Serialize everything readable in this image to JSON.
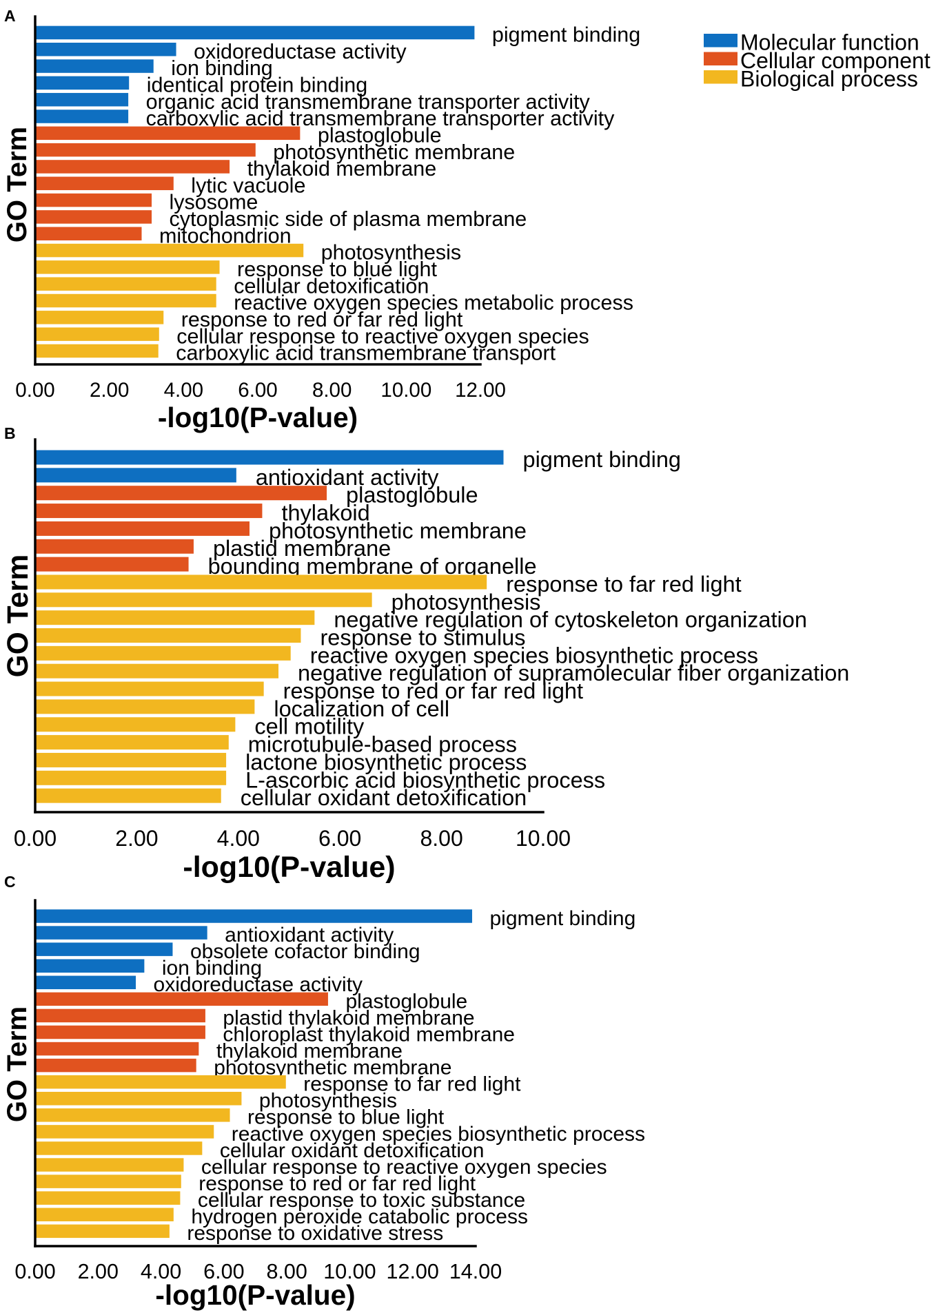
{
  "legend": {
    "placement": "top-right",
    "items": [
      {
        "label": "Molecular function",
        "color": "#0E6FC1"
      },
      {
        "label": "Cellular component",
        "color": "#E1531F"
      },
      {
        "label": "Biological process",
        "color": "#F2B720"
      }
    ]
  },
  "chart_data": [
    {
      "panel_label": "A",
      "type": "bar",
      "xlabel": "-log10(P-value)",
      "ylabel": "GO Term",
      "xlim": [
        0,
        12
      ],
      "xticks": [
        "0.00",
        "2.00",
        "4.00",
        "6.00",
        "8.00",
        "10.00",
        "12.00"
      ],
      "grid": false,
      "categories": [
        "pigment binding",
        "oxidoreductase activity",
        "ion binding",
        "identical protein binding",
        "organic acid transmembrane transporter activity",
        "carboxylic acid transmembrane transporter activity",
        "plastoglobule",
        "photosynthetic membrane",
        "thylakoid membrane",
        "lytic vacuole",
        "lysosome",
        "cytoplasmic side of plasma membrane",
        "mitochondrion",
        "photosynthesis",
        "response to blue light",
        "cellular detoxification",
        "reactive oxygen species metabolic process",
        "response to red or far red light",
        "cellular response to reactive oxygen species",
        "carboxylic acid transmembrane transport"
      ],
      "values": [
        11.84,
        3.8,
        3.19,
        2.53,
        2.51,
        2.51,
        7.14,
        5.94,
        5.24,
        3.73,
        3.14,
        3.14,
        2.87,
        7.23,
        4.97,
        4.88,
        4.88,
        3.46,
        3.34,
        3.32
      ],
      "groups": [
        0,
        0,
        0,
        0,
        0,
        0,
        1,
        1,
        1,
        1,
        1,
        1,
        1,
        2,
        2,
        2,
        2,
        2,
        2,
        2
      ]
    },
    {
      "panel_label": "B",
      "type": "bar",
      "xlabel": "-log10(P-value)",
      "ylabel": "GO Term",
      "xlim": [
        0,
        10
      ],
      "xticks": [
        "0.00",
        "2.00",
        "4.00",
        "6.00",
        "8.00",
        "10.00"
      ],
      "grid": false,
      "categories": [
        "pigment binding",
        "antioxidant activity",
        "plastoglobule",
        "thylakoid",
        "photosynthetic membrane",
        "plastid membrane",
        "bounding membrane of organelle",
        "response to far red light",
        "photosynthesis",
        "negative regulation of cytoskeleton organization",
        "response to stimulus",
        "reactive oxygen species biosynthetic process",
        "negative regulation of supramolecular fiber organization",
        "response to red or far red light",
        "localization of cell",
        "cell motility",
        "microtubule-based process",
        "lactone biosynthetic process",
        "L-ascorbic acid biosynthetic process",
        "cellular oxidant detoxification"
      ],
      "values": [
        9.22,
        3.96,
        5.74,
        4.47,
        4.22,
        3.12,
        3.02,
        8.89,
        6.63,
        5.5,
        5.23,
        5.03,
        4.79,
        4.5,
        4.32,
        3.94,
        3.81,
        3.76,
        3.76,
        3.66
      ],
      "groups": [
        0,
        0,
        1,
        1,
        1,
        1,
        1,
        2,
        2,
        2,
        2,
        2,
        2,
        2,
        2,
        2,
        2,
        2,
        2,
        2
      ]
    },
    {
      "panel_label": "C",
      "type": "bar",
      "xlabel": "-log10(P-value)",
      "ylabel": "GO Term",
      "xlim": [
        0,
        14
      ],
      "xticks": [
        "0.00",
        "2.00",
        "4.00",
        "6.00",
        "8.00",
        "10.00",
        "12.00",
        "14.00"
      ],
      "grid": false,
      "categories": [
        "pigment binding",
        "antioxidant activity",
        "obsolete cofactor binding",
        "ion binding",
        "oxidoreductase activity",
        "plastoglobule",
        "plastid thylakoid membrane",
        "chloroplast thylakoid membrane",
        "thylakoid membrane",
        "photosynthetic membrane",
        "response to far red light",
        "photosynthesis",
        "response to blue light",
        "reactive oxygen species biosynthetic process",
        "cellular oxidant detoxification",
        "cellular response to reactive oxygen species",
        "response to red or far red light",
        "cellular response to toxic substance",
        "hydrogen peroxide catabolic process",
        "response to oxidative stress"
      ],
      "values": [
        13.89,
        5.47,
        4.37,
        3.47,
        3.2,
        9.31,
        5.41,
        5.41,
        5.2,
        5.12,
        7.97,
        6.56,
        6.19,
        5.68,
        5.31,
        4.72,
        4.64,
        4.61,
        4.4,
        4.27
      ],
      "groups": [
        0,
        0,
        0,
        0,
        0,
        1,
        1,
        1,
        1,
        1,
        2,
        2,
        2,
        2,
        2,
        2,
        2,
        2,
        2,
        2
      ]
    }
  ]
}
